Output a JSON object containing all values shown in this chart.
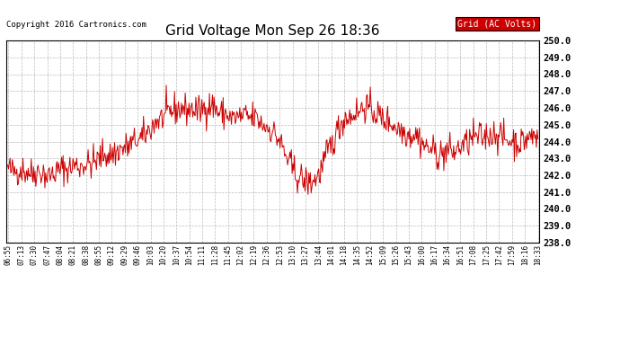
{
  "title": "Grid Voltage Mon Sep 26 18:36",
  "copyright": "Copyright 2016 Cartronics.com",
  "legend_label": "Grid (AC Volts)",
  "legend_bg": "#cc0000",
  "legend_fg": "#ffffff",
  "line_color": "#cc0000",
  "background_color": "#ffffff",
  "grid_color": "#bbbbbb",
  "ylim": [
    238.0,
    250.0
  ],
  "yticks": [
    238.0,
    239.0,
    240.0,
    241.0,
    242.0,
    243.0,
    244.0,
    245.0,
    246.0,
    247.0,
    248.0,
    249.0,
    250.0
  ],
  "xtick_labels": [
    "06:55",
    "07:13",
    "07:30",
    "07:47",
    "08:04",
    "08:21",
    "08:38",
    "08:55",
    "09:12",
    "09:29",
    "09:46",
    "10:03",
    "10:20",
    "10:37",
    "10:54",
    "11:11",
    "11:28",
    "11:45",
    "12:02",
    "12:19",
    "12:36",
    "12:53",
    "13:10",
    "13:27",
    "13:44",
    "14:01",
    "14:18",
    "14:35",
    "14:52",
    "15:09",
    "15:26",
    "15:43",
    "16:00",
    "16:17",
    "16:34",
    "16:51",
    "17:08",
    "17:25",
    "17:42",
    "17:59",
    "18:16",
    "18:33"
  ],
  "seed": 42,
  "n_points": 700
}
